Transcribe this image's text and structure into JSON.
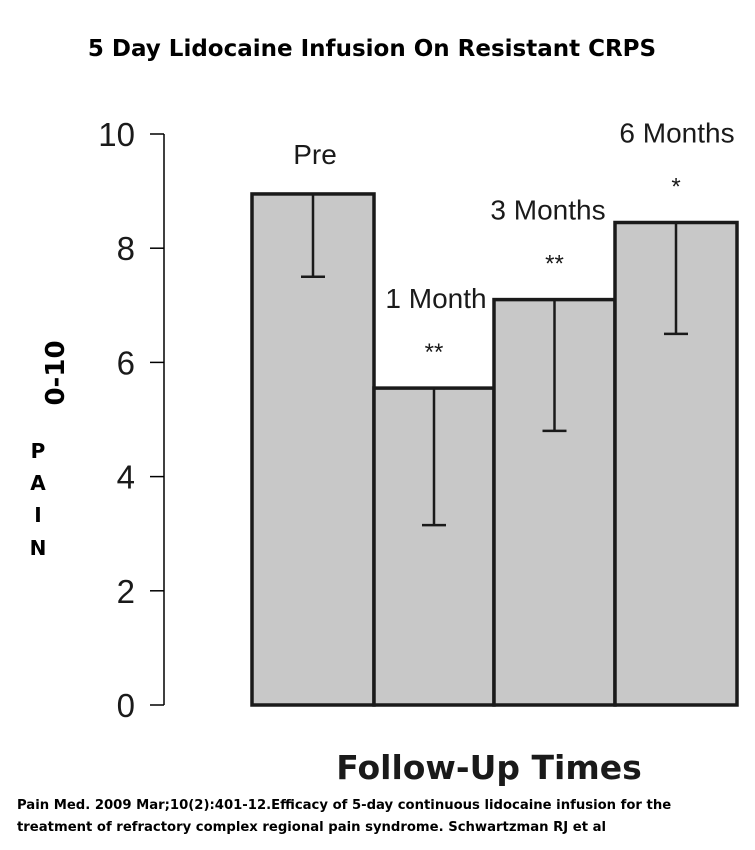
{
  "chart_data": {
    "type": "bar",
    "title": "5 Day Lidocaine Infusion On Resistant CRPS",
    "xlabel": "Follow-Up Times",
    "ylabel_top": "0-10",
    "ylabel_letters": [
      "P",
      "A",
      "I",
      "N"
    ],
    "ylim": [
      0,
      10
    ],
    "yticks": [
      0,
      2,
      4,
      6,
      8,
      10
    ],
    "categories": [
      "Pre",
      "1 Month",
      "3 Months",
      "6 Months"
    ],
    "values": [
      8.95,
      5.55,
      7.1,
      8.45
    ],
    "error_low": [
      7.5,
      3.15,
      4.8,
      6.5
    ],
    "significance": [
      "",
      "**",
      "**",
      "*"
    ],
    "grid": false,
    "colors": {
      "bar_fill": "#c8c8c8",
      "bar_stroke": "#1a1a1a"
    }
  },
  "citation": {
    "line1": "Pain Med. 2009 Mar;10(2):401-12.Efficacy of 5-day continuous lidocaine infusion for the",
    "line2": "treatment of refractory complex regional pain syndrome.  Schwartzman RJ et al"
  }
}
